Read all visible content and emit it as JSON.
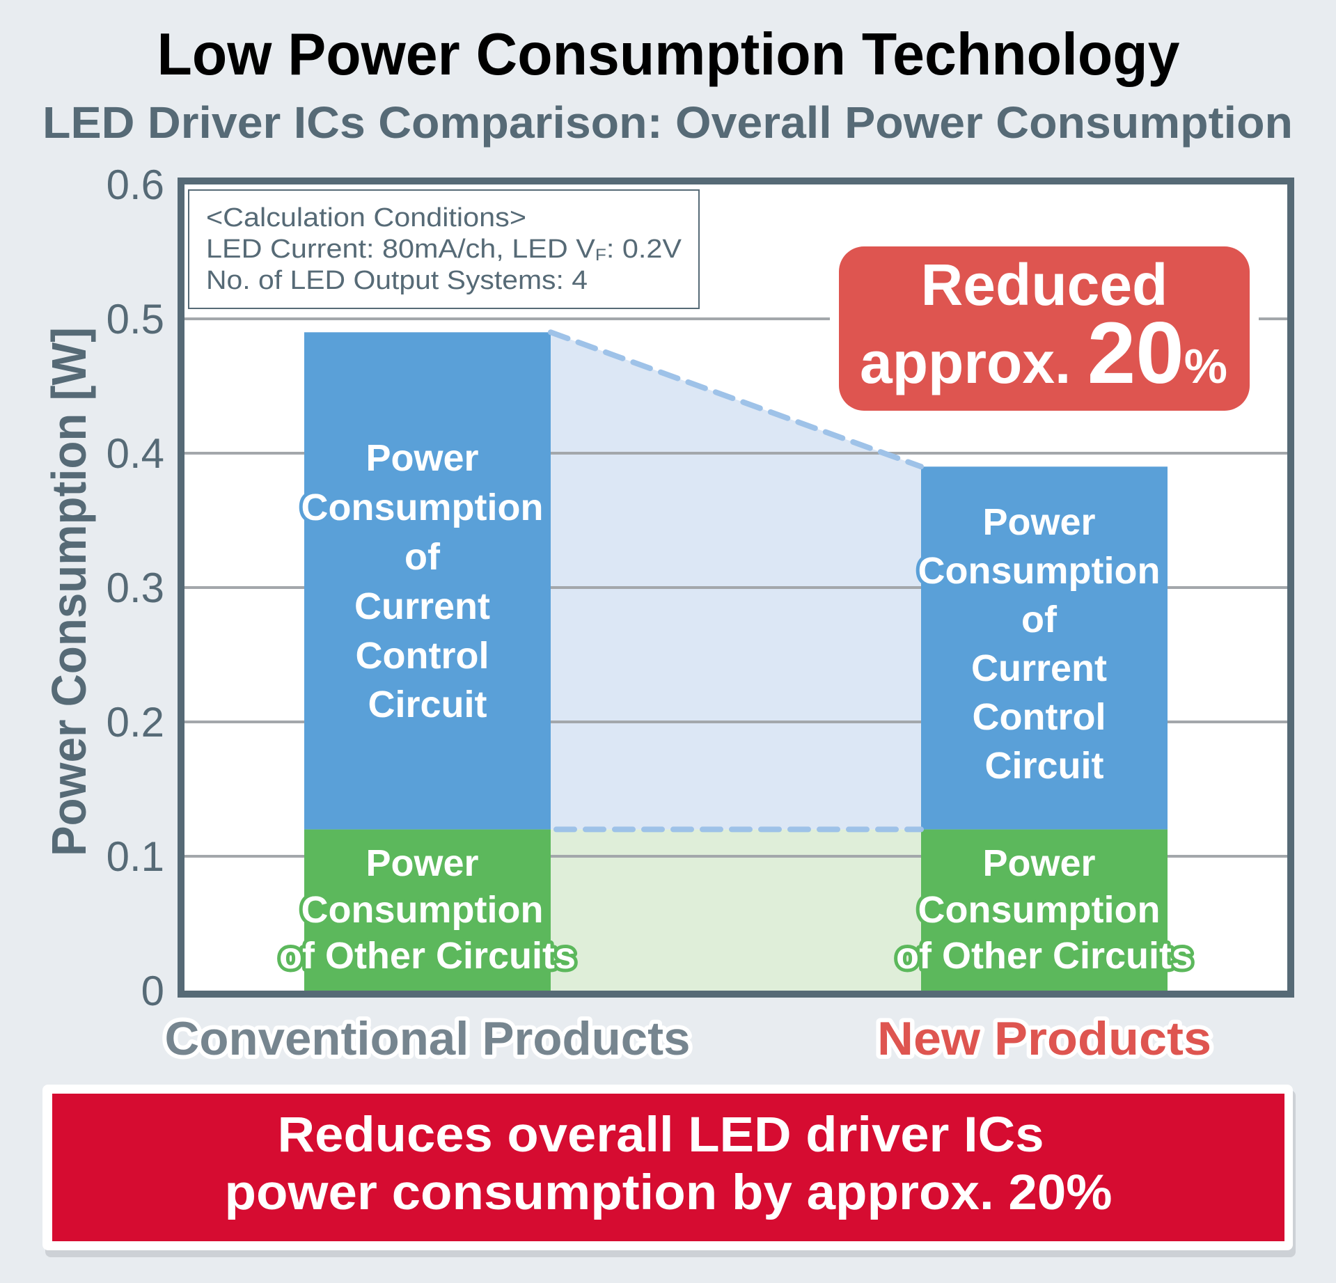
{
  "header": {
    "title": "Low Power Consumption Technology",
    "subtitle": "LED Driver ICs Comparison: Overall Power Consumption"
  },
  "conditions": {
    "heading": "<Calculation Conditions>",
    "line1_prefix": "LED Current: 80mA/ch, LED V",
    "line1_sub": "F",
    "line1_suffix": ": 0.2V",
    "line2": "No. of LED Output Systems: 4"
  },
  "badge": {
    "line1": "Reduced",
    "line2_prefix": "approx. ",
    "value": "20",
    "unit": "%"
  },
  "banner": {
    "line1": "Reduces overall LED driver ICs",
    "line2": "power consumption by approx. 20%"
  },
  "colors": {
    "background": "#E8ECF0",
    "frame": "#566A76",
    "current_control": "#5AA0D8",
    "other_circuits": "#5CB85C",
    "reduction_fill_blue": "#DCE7F5",
    "reduction_fill_green": "#DFEED9",
    "dashed_line": "#9EC2E8",
    "badge": "#DE5550",
    "banner": "#D60C31",
    "conventional_label": "#76858F",
    "new_label": "#DE5550"
  },
  "chart_data": {
    "type": "bar",
    "stacked": true,
    "title": "Low Power Consumption Technology",
    "subtitle": "LED Driver ICs Comparison: Overall Power Consumption",
    "xlabel": "",
    "ylabel": "Power Consumption [W]",
    "ylim": [
      0,
      0.6
    ],
    "yticks": [
      0,
      0.1,
      0.2,
      0.3,
      0.4,
      0.5,
      0.6
    ],
    "ytick_labels": [
      "0",
      "0.1",
      "0.2",
      "0.3",
      "0.4",
      "0.5",
      "0.6"
    ],
    "grid": true,
    "legend": "none",
    "categories": [
      "Conventional Products",
      "New Products"
    ],
    "series": [
      {
        "name": "Power Consumption of Other Circuits",
        "values": [
          0.12,
          0.12
        ],
        "label_lines": [
          "Power",
          "Consumption",
          "of Other Circuits"
        ]
      },
      {
        "name": "Power Consumption of Current Control Circuit",
        "values": [
          0.37,
          0.27
        ],
        "label_lines": [
          "Power",
          "Consumption",
          "of",
          "Current",
          "Control",
          "Circuit"
        ]
      }
    ],
    "totals": [
      0.49,
      0.39
    ],
    "annotations": [
      "Reduced approx. 20%"
    ]
  }
}
